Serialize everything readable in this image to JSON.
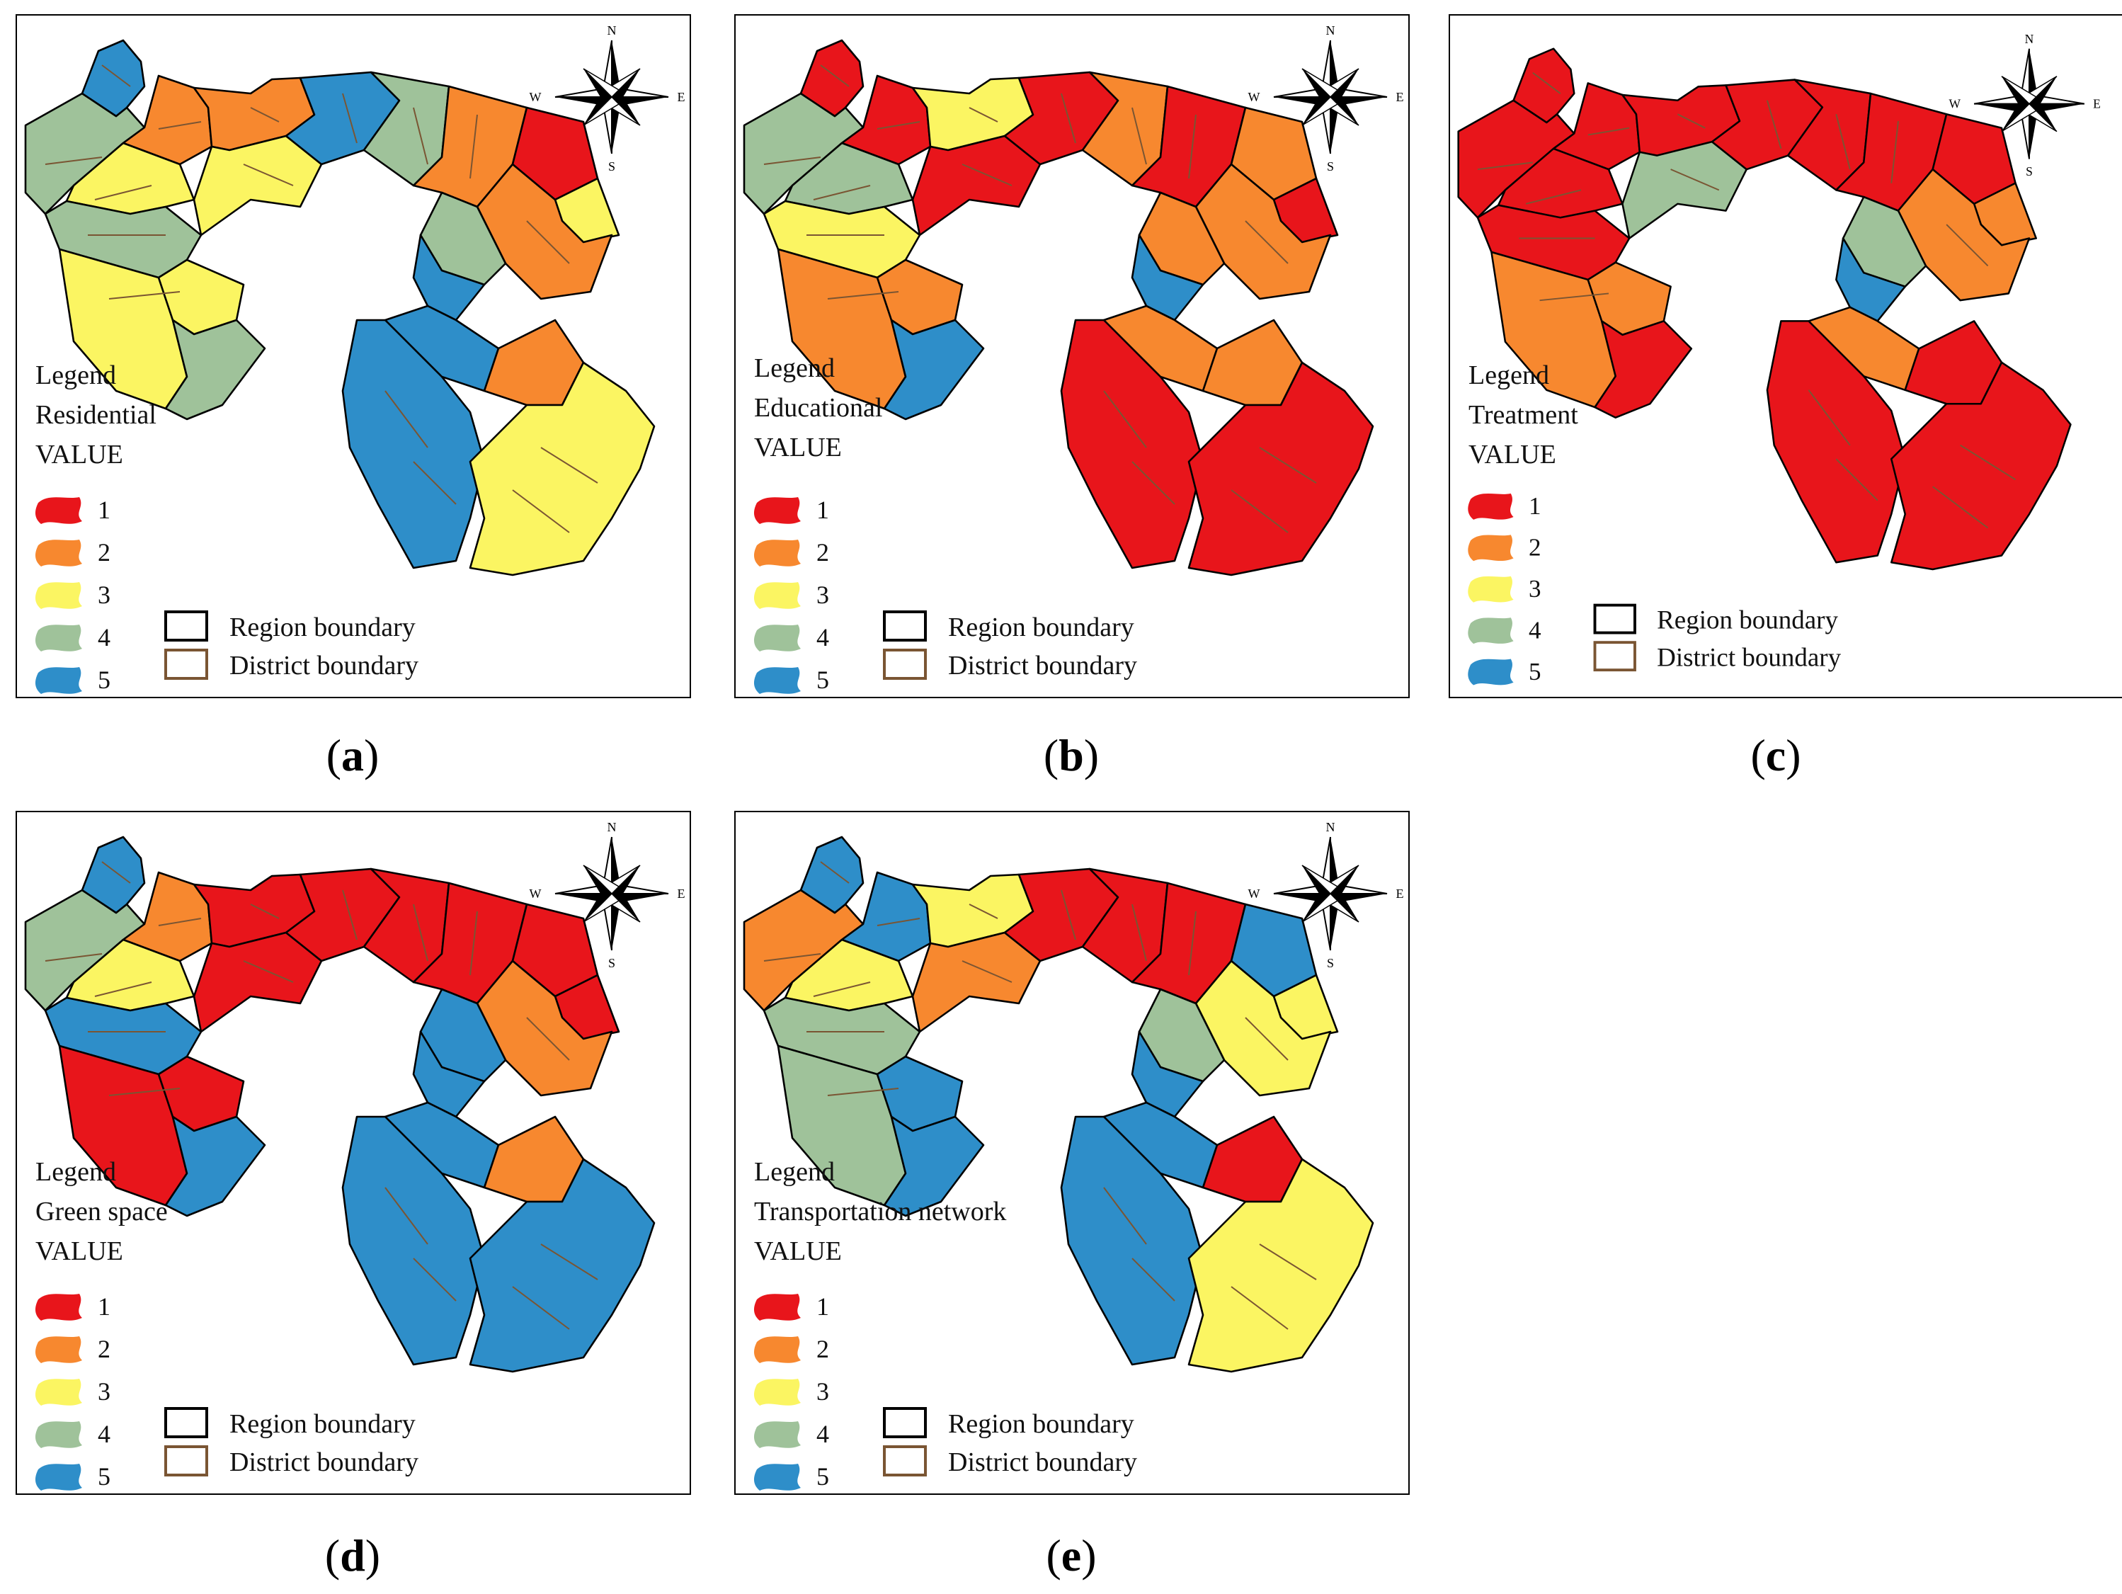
{
  "colors": {
    "1": "#e8151b",
    "2": "#f7882f",
    "3": "#fbf562",
    "4": "#9fc29a",
    "5": "#2e8ec9",
    "region_boundary": "#000000",
    "district_boundary": "#7a5533"
  },
  "legend_common": {
    "value_label": "VALUE",
    "values": [
      "1",
      "2",
      "3",
      "4",
      "5"
    ],
    "region_boundary_label": "Region boundary",
    "district_boundary_label": "District boundary"
  },
  "compass": {
    "n": "N",
    "s": "S",
    "e": "E",
    "w": "W"
  },
  "panels": [
    {
      "caption_letter": "a",
      "legend_heading": "Legend",
      "layer_name": "Residential",
      "zones": [
        4,
        5,
        2,
        3,
        4,
        3,
        3,
        4,
        2,
        3,
        5,
        4,
        2,
        1,
        3,
        2,
        4,
        5,
        5,
        5,
        2,
        3
      ]
    },
    {
      "caption_letter": "b",
      "legend_heading": "Legend",
      "layer_name": "Educational",
      "zones": [
        4,
        1,
        1,
        4,
        3,
        2,
        2,
        5,
        3,
        1,
        1,
        2,
        1,
        2,
        1,
        2,
        2,
        5,
        2,
        1,
        2,
        1
      ]
    },
    {
      "caption_letter": "c",
      "legend_heading": "Legend",
      "layer_name": "Treatment",
      "zones": [
        1,
        1,
        1,
        1,
        1,
        2,
        2,
        1,
        1,
        4,
        1,
        1,
        1,
        1,
        2,
        2,
        4,
        5,
        2,
        1,
        1,
        1
      ]
    },
    {
      "caption_letter": "d",
      "legend_heading": "Legend",
      "layer_name": "Green space",
      "zones": [
        4,
        5,
        2,
        3,
        5,
        1,
        1,
        5,
        1,
        1,
        1,
        1,
        1,
        1,
        1,
        2,
        5,
        5,
        5,
        5,
        2,
        5
      ]
    },
    {
      "caption_letter": "e",
      "legend_heading": "Legend",
      "layer_name": "Transportation network",
      "zones": [
        2,
        5,
        5,
        3,
        4,
        4,
        5,
        5,
        3,
        2,
        1,
        1,
        1,
        5,
        3,
        3,
        4,
        5,
        5,
        5,
        1,
        3
      ]
    }
  ]
}
